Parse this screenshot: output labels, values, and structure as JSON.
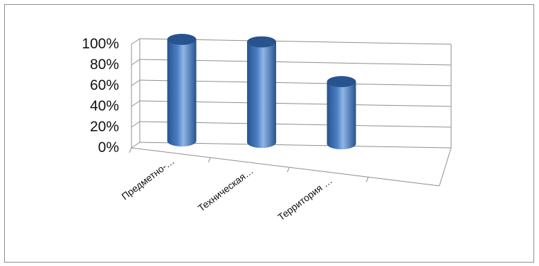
{
  "chart_data": {
    "type": "bar",
    "style": "3d-cylinder",
    "categories": [
      "Предметно-…",
      "Техническая…",
      "Территория …"
    ],
    "series": [
      {
        "values": [
          98,
          97,
          60
        ]
      }
    ],
    "ylim": [
      0,
      100
    ],
    "yticks": [
      "0%",
      "20%",
      "40%",
      "60%",
      "80%",
      "100%"
    ],
    "grid": true,
    "legend": "none",
    "colors": {
      "bar": "#4a7fc4",
      "bar_dark": "#27538f",
      "bar_light": "#8fb6e6",
      "grid": "#8c8c8c"
    }
  }
}
